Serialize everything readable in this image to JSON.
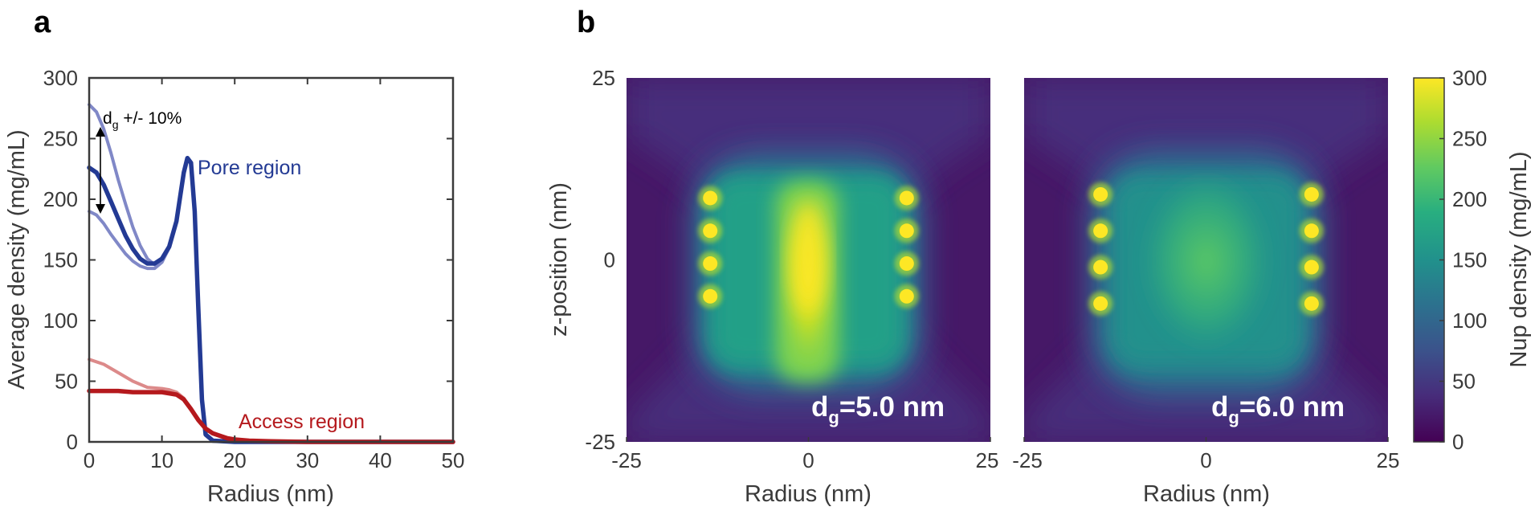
{
  "panel_a": {
    "letter": "a",
    "chart_data": {
      "type": "line",
      "xlabel": "Radius (nm)",
      "ylabel": "Average density (mg/mL)",
      "xlim": [
        0,
        50
      ],
      "ylim": [
        0,
        300
      ],
      "xticks": [
        0,
        10,
        20,
        30,
        40,
        50
      ],
      "yticks": [
        0,
        50,
        100,
        150,
        200,
        250,
        300
      ],
      "grid": false,
      "legend": "none (inline text labels)",
      "colors": {
        "pore": "#233a94",
        "pore_light": "#8088c7",
        "access": "#b5191d",
        "access_light": "#dc8a8a"
      },
      "series": [
        {
          "name": "Pore region",
          "x": [
            0,
            1,
            2,
            3,
            4,
            5,
            6,
            7,
            8,
            9,
            10,
            11,
            12,
            13,
            13.5,
            14,
            14.5,
            15,
            15.5,
            16,
            17,
            20,
            30,
            40,
            50
          ],
          "y": [
            226,
            222,
            212,
            198,
            184,
            170,
            159,
            151,
            147,
            147,
            151,
            161,
            182,
            222,
            234,
            230,
            190,
            110,
            35,
            6,
            1,
            0,
            0,
            0,
            0
          ]
        },
        {
          "name": "",
          "x": [
            0,
            1,
            2,
            3,
            4,
            5,
            6,
            7,
            8,
            9,
            10,
            11,
            12,
            13,
            13.5,
            14
          ],
          "y": [
            278,
            272,
            258,
            238,
            216,
            196,
            177,
            162,
            151,
            146,
            150,
            161,
            182,
            222,
            234,
            230
          ]
        },
        {
          "name": "",
          "x": [
            0,
            1,
            2,
            3,
            4,
            5,
            6,
            7,
            8,
            9,
            10,
            11,
            12,
            13,
            13.5,
            14
          ],
          "y": [
            190,
            187,
            180,
            171,
            163,
            155,
            149,
            145,
            143,
            143,
            148,
            160,
            182,
            222,
            234,
            230
          ]
        },
        {
          "name": "Access region",
          "x": [
            0,
            2,
            4,
            6,
            8,
            10,
            11,
            12,
            13,
            14,
            15,
            16,
            17,
            18,
            19,
            20,
            22,
            25,
            30,
            40,
            50
          ],
          "y": [
            42,
            42,
            42,
            41,
            41,
            41,
            40,
            39,
            35,
            27,
            18,
            11,
            7,
            5,
            3,
            2,
            1,
            0.5,
            0,
            0,
            0
          ]
        },
        {
          "name": "",
          "x": [
            0,
            2,
            4,
            6,
            8,
            10,
            11,
            12,
            13,
            14,
            15,
            16,
            17,
            18
          ],
          "y": [
            68,
            64,
            57,
            50,
            45,
            44,
            43,
            41,
            36,
            27,
            18,
            11,
            7,
            5
          ]
        }
      ],
      "annotations": [
        {
          "text_main": "d",
          "text_sub": "g",
          "text_rest": " +/- 10%"
        },
        {
          "text": "Pore region"
        },
        {
          "text": "Access region"
        }
      ]
    }
  },
  "panel_b": {
    "letter": "b",
    "chart_data": [
      {
        "type": "heatmap",
        "label_main": "d",
        "label_sub": "g",
        "label_rest": "=5.0 nm",
        "xlabel": "Radius (nm)",
        "ylabel": "z-position (nm)",
        "xlim": [
          -25,
          25
        ],
        "ylim": [
          -25,
          25
        ],
        "xticks": [
          -25,
          0,
          25
        ],
        "yticks": [
          -25,
          0,
          25
        ],
        "anchor_points_x": [
          -13.5,
          13.5
        ],
        "anchor_points_z": [
          8.5,
          4,
          -0.5,
          -5
        ]
      },
      {
        "type": "heatmap",
        "label_main": "d",
        "label_sub": "g",
        "label_rest": "=6.0 nm",
        "xlabel": "Radius (nm)",
        "xlim": [
          -25,
          25
        ],
        "ylim": [
          -25,
          25
        ],
        "xticks": [
          -25,
          0,
          25
        ],
        "anchor_points_x": [
          -14.5,
          14.5
        ],
        "anchor_points_z": [
          9,
          4,
          -1,
          -6
        ]
      }
    ],
    "colorbar": {
      "label": "Nup density (mg/mL)",
      "ticks": [
        0,
        50,
        100,
        150,
        200,
        250,
        300
      ],
      "colormap": "viridis"
    }
  }
}
